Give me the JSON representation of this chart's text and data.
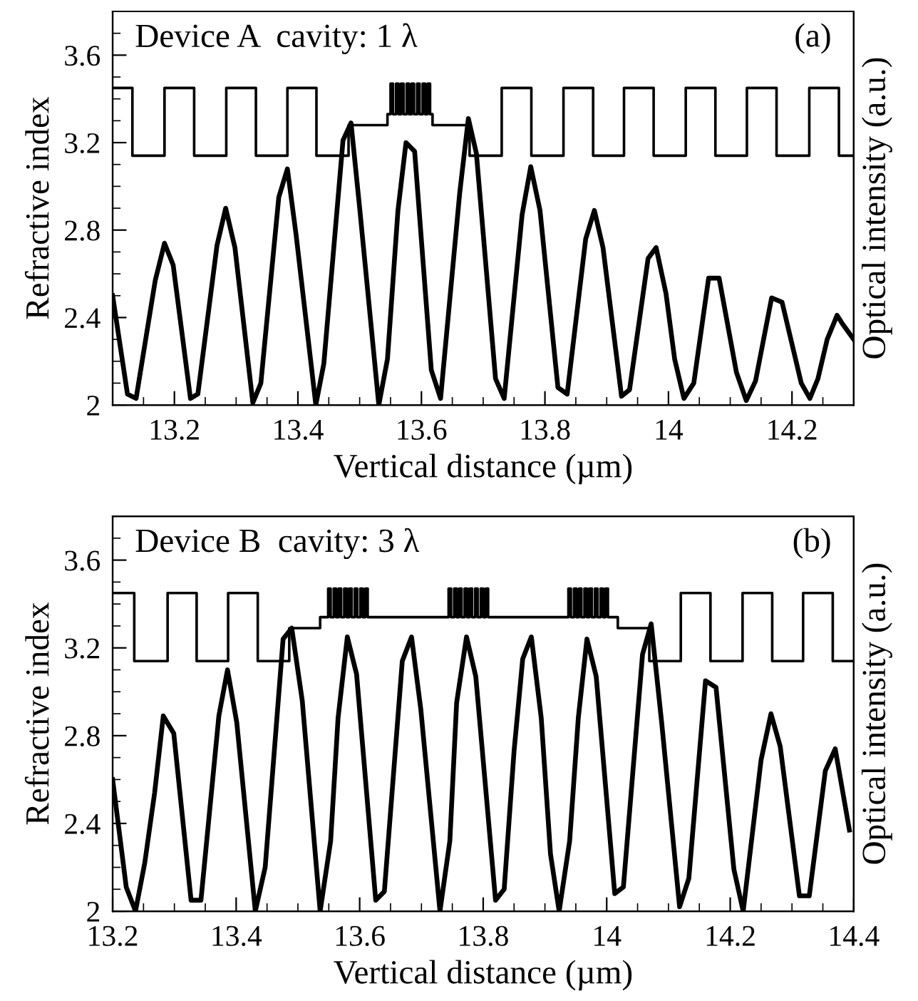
{
  "chart_data": [
    {
      "type": "line",
      "xlabel": "Vertical distance (µm)",
      "ylabel": "Refractive index",
      "y2label": "Optical intensity (a.u.)",
      "annotations": [
        "Device A  cavity: 1 λ",
        "(a)"
      ],
      "xlim": [
        13.1,
        14.3
      ],
      "xticks": [
        13.2,
        13.4,
        13.6,
        13.8,
        14,
        14.2
      ],
      "ylim": [
        2,
        3.8
      ],
      "yticks": [
        2,
        2.4,
        2.8,
        3.2,
        3.6
      ],
      "grid": false,
      "series": [
        {
          "type": "step",
          "color": "#000000",
          "x": [
            13.1,
            13.132,
            13.184,
            13.232,
            13.284,
            13.332,
            13.383,
            13.43,
            13.482,
            13.545,
            13.55,
            13.554,
            13.559,
            13.563,
            13.567,
            13.571,
            13.576,
            13.58,
            13.584,
            13.588,
            13.593,
            13.597,
            13.602,
            13.606,
            13.61,
            13.614,
            13.618,
            13.678,
            13.73,
            13.778,
            13.83,
            13.878,
            13.928,
            13.976,
            14.028,
            14.076,
            14.127,
            14.175,
            14.228,
            14.276,
            14.3
          ],
          "values": [
            3.45,
            3.14,
            3.45,
            3.14,
            3.45,
            3.14,
            3.45,
            3.14,
            3.28,
            3.33,
            3.47,
            3.33,
            3.47,
            3.33,
            3.47,
            3.33,
            3.47,
            3.33,
            3.47,
            3.33,
            3.47,
            3.33,
            3.47,
            3.33,
            3.47,
            3.33,
            3.28,
            3.14,
            3.45,
            3.14,
            3.45,
            3.14,
            3.45,
            3.14,
            3.45,
            3.14,
            3.45,
            3.14,
            3.45,
            3.14,
            3.14
          ]
        },
        {
          "color": "#000000",
          "x": [
            13.1,
            13.124,
            13.138,
            13.169,
            13.184,
            13.198,
            13.226,
            13.238,
            13.269,
            13.283,
            13.298,
            13.327,
            13.34,
            13.369,
            13.383,
            13.397,
            13.429,
            13.442,
            13.473,
            13.486,
            13.5,
            13.531,
            13.545,
            13.562,
            13.575,
            13.589,
            13.616,
            13.631,
            13.662,
            13.676,
            13.689,
            13.72,
            13.734,
            13.763,
            13.777,
            13.792,
            13.821,
            13.836,
            13.866,
            13.88,
            13.894,
            13.924,
            13.937,
            13.967,
            13.98,
            13.996,
            14.01,
            14.025,
            14.041,
            14.065,
            14.082,
            14.11,
            14.126,
            14.141,
            14.167,
            14.184,
            14.215,
            14.229,
            14.242,
            14.257,
            14.273,
            14.282,
            14.3
          ],
          "values": [
            2.5,
            2.05,
            2.03,
            2.57,
            2.74,
            2.64,
            2.03,
            2.05,
            2.73,
            2.9,
            2.72,
            2.01,
            2.1,
            2.95,
            3.08,
            2.78,
            2.0,
            2.19,
            3.21,
            3.29,
            2.9,
            2.0,
            2.21,
            2.89,
            3.2,
            3.16,
            2.16,
            2.03,
            2.97,
            3.31,
            3.15,
            2.12,
            2.03,
            2.87,
            3.09,
            2.89,
            2.08,
            2.05,
            2.76,
            2.89,
            2.72,
            2.04,
            2.07,
            2.67,
            2.72,
            2.51,
            2.21,
            2.03,
            2.1,
            2.58,
            2.58,
            2.15,
            2.02,
            2.11,
            2.49,
            2.47,
            2.1,
            2.03,
            2.12,
            2.3,
            2.41,
            2.37,
            2.3
          ]
        }
      ]
    },
    {
      "type": "line",
      "xlabel": "Vertical distance (µm)",
      "ylabel": "Refractive index",
      "y2label": "Optical intensity (a.u.)",
      "annotations": [
        "Device B  cavity: 3 λ",
        "(b)"
      ],
      "xlim": [
        13.2,
        14.4
      ],
      "xticks": [
        13.2,
        13.4,
        13.6,
        13.8,
        14,
        14.2,
        14.4
      ],
      "ylim": [
        2,
        3.8
      ],
      "yticks": [
        2,
        2.4,
        2.8,
        3.2,
        3.6
      ],
      "grid": false,
      "series": [
        {
          "type": "step",
          "color": "#000000",
          "x": [
            13.2,
            13.235,
            13.289,
            13.336,
            13.387,
            13.435,
            13.486,
            13.536,
            13.549,
            13.553,
            13.558,
            13.562,
            13.566,
            13.57,
            13.575,
            13.579,
            13.583,
            13.587,
            13.592,
            13.596,
            13.601,
            13.605,
            13.609,
            13.613,
            13.744,
            13.748,
            13.753,
            13.757,
            13.761,
            13.765,
            13.77,
            13.774,
            13.778,
            13.782,
            13.787,
            13.791,
            13.796,
            13.8,
            13.804,
            13.808,
            13.938,
            13.942,
            13.947,
            13.951,
            13.955,
            13.959,
            13.964,
            13.968,
            13.972,
            13.976,
            13.981,
            13.985,
            13.99,
            13.994,
            13.998,
            14.002,
            14.018,
            14.069,
            14.12,
            14.168,
            14.22,
            14.268,
            14.318,
            14.366,
            14.4
          ],
          "values": [
            3.45,
            3.14,
            3.45,
            3.14,
            3.45,
            3.14,
            3.29,
            3.34,
            3.47,
            3.34,
            3.47,
            3.34,
            3.47,
            3.34,
            3.47,
            3.34,
            3.47,
            3.34,
            3.47,
            3.34,
            3.47,
            3.34,
            3.47,
            3.34,
            3.47,
            3.34,
            3.47,
            3.34,
            3.47,
            3.34,
            3.47,
            3.34,
            3.47,
            3.34,
            3.47,
            3.34,
            3.47,
            3.34,
            3.47,
            3.34,
            3.47,
            3.34,
            3.47,
            3.34,
            3.47,
            3.34,
            3.47,
            3.34,
            3.47,
            3.34,
            3.47,
            3.34,
            3.47,
            3.34,
            3.47,
            3.34,
            3.29,
            3.14,
            3.45,
            3.14,
            3.45,
            3.14,
            3.45,
            3.14,
            3.14
          ]
        },
        {
          "color": "#000000",
          "x": [
            13.2,
            13.222,
            13.237,
            13.252,
            13.268,
            13.282,
            13.299,
            13.327,
            13.343,
            13.372,
            13.386,
            13.401,
            13.431,
            13.447,
            13.476,
            13.49,
            13.507,
            13.536,
            13.553,
            13.565,
            13.58,
            13.595,
            13.626,
            13.64,
            13.669,
            13.684,
            13.699,
            13.73,
            13.746,
            13.757,
            13.773,
            13.788,
            13.82,
            13.834,
            13.85,
            13.864,
            13.878,
            13.894,
            13.909,
            13.923,
            13.94,
            13.954,
            13.968,
            13.983,
            14.013,
            14.027,
            14.058,
            14.072,
            14.089,
            14.118,
            14.133,
            14.16,
            14.177,
            14.206,
            14.221,
            14.25,
            14.266,
            14.281,
            14.312,
            14.328,
            14.354,
            14.37,
            14.393
          ],
          "values": [
            2.6,
            2.11,
            2.0,
            2.22,
            2.54,
            2.89,
            2.81,
            2.05,
            2.05,
            2.89,
            3.1,
            2.86,
            2.0,
            2.2,
            3.24,
            3.29,
            2.96,
            2.0,
            2.32,
            2.88,
            3.25,
            3.08,
            2.05,
            2.09,
            3.14,
            3.25,
            2.92,
            2.0,
            2.32,
            2.95,
            3.25,
            3.07,
            2.05,
            2.1,
            2.73,
            3.15,
            3.25,
            2.88,
            2.26,
            2.0,
            2.32,
            2.88,
            3.24,
            3.07,
            2.08,
            2.11,
            3.17,
            3.31,
            2.86,
            2.02,
            2.15,
            3.05,
            3.02,
            2.19,
            2.0,
            2.69,
            2.9,
            2.75,
            2.07,
            2.07,
            2.64,
            2.74,
            2.37
          ]
        }
      ]
    }
  ]
}
